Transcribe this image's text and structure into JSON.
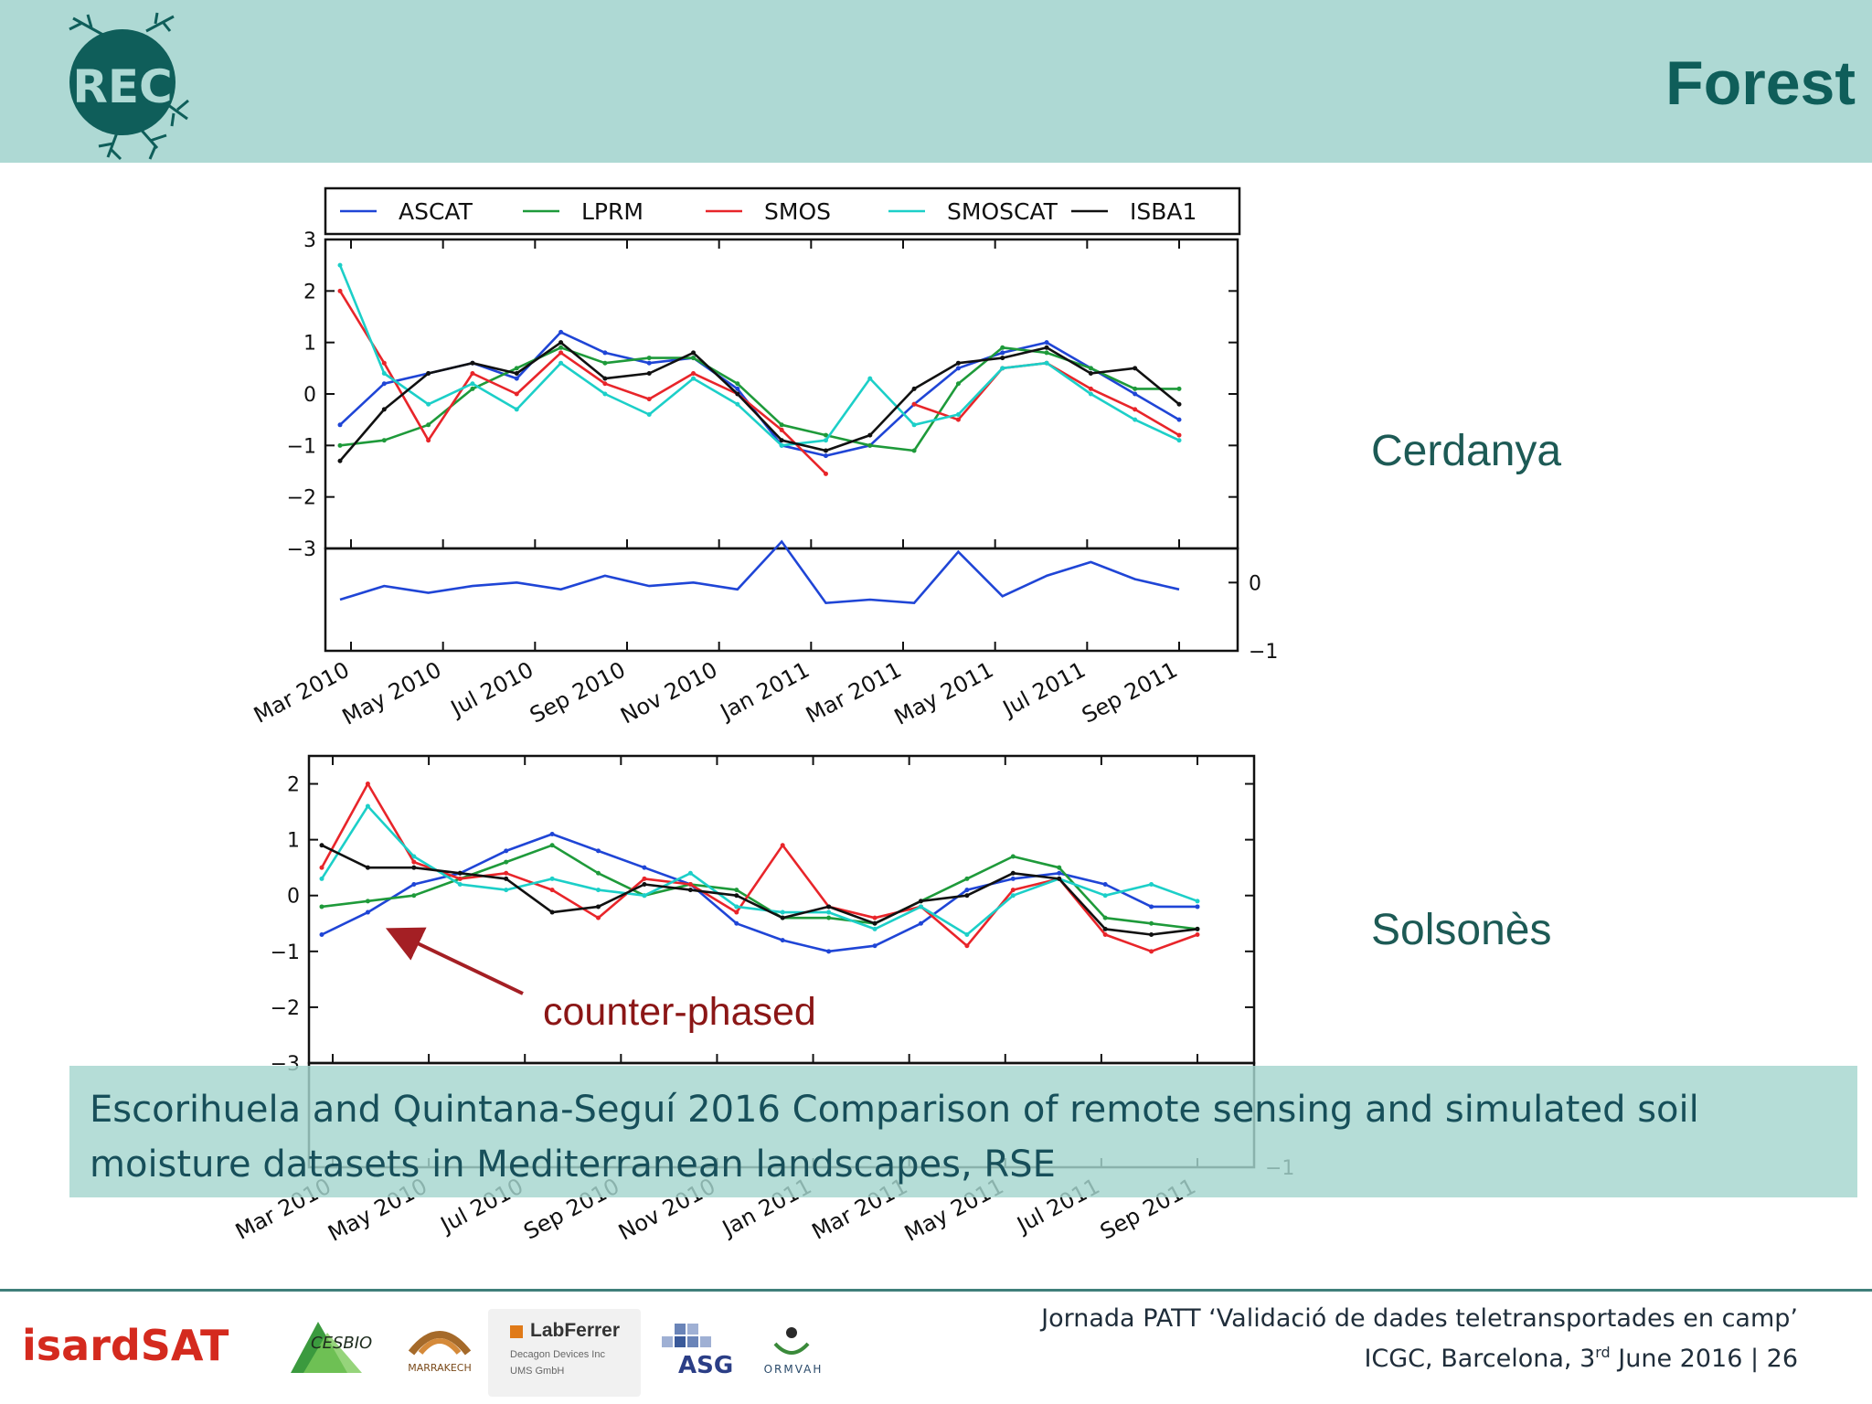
{
  "slide": {
    "title": "Forest",
    "logo_text": "REC",
    "site_labels": [
      "Cerdanya",
      "Solsonès"
    ],
    "annotation": "counter-phased",
    "citation_lines": [
      "Escorihuela and Quintana-Seguí 2016 Comparison of remote sensing and simulated soil",
      "moisture datasets in Mediterranean landscapes, RSE"
    ],
    "footer": {
      "line1": "Jornada PATT ‘Validació de dades teletransportades en camp’",
      "line2_prefix": "ICGC, Barcelona, 3",
      "line2_sup": "rd",
      "line2_suffix": " June 2016 | 26"
    },
    "sponsors": {
      "isardsat": "isardSAT",
      "cesbio": "CESBIO",
      "marrakech": "MARRAKECH",
      "labferrer": "LabFerrer",
      "labferrer_sub1": "Decagon Devices Inc",
      "labferrer_sub2": "UMS GmbH",
      "asg": "ASG",
      "ormvah": "ORMVAH"
    },
    "colors": {
      "header_bg": "#aed9d4",
      "title": "#0f5e5a",
      "ASCAT": "#1f45d6",
      "LPRM": "#1e9a3a",
      "SMOS": "#e8252a",
      "SMOSCAT": "#1ccfc8",
      "ISBA1": "#111111"
    }
  },
  "chart_data": [
    {
      "type": "line",
      "site": "Cerdanya",
      "legend": [
        "ASCAT",
        "LPRM",
        "SMOS",
        "SMOSCAT",
        "ISBA1"
      ],
      "x_ticks": [
        "Mar 2010",
        "May 2010",
        "Jul 2010",
        "Sep 2010",
        "Nov 2010",
        "Jan 2011",
        "Mar 2011",
        "May 2011",
        "Jul 2011",
        "Sep 2011"
      ],
      "x": [
        "2010-02",
        "2010-03",
        "2010-04",
        "2010-05",
        "2010-06",
        "2010-07",
        "2010-08",
        "2010-09",
        "2010-10",
        "2010-11",
        "2010-12",
        "2011-01",
        "2011-02",
        "2011-03",
        "2011-04",
        "2011-05",
        "2011-06",
        "2011-07",
        "2011-08",
        "2011-09"
      ],
      "ylim": [
        -3,
        3
      ],
      "y_ticks": [
        "3",
        "2",
        "1",
        "0",
        "−1",
        "−2",
        "−3"
      ],
      "series": [
        {
          "name": "ASCAT",
          "values": [
            -0.6,
            0.2,
            0.4,
            0.6,
            0.3,
            1.2,
            0.8,
            0.6,
            0.7,
            0.1,
            -1.0,
            -1.2,
            -1.0,
            -0.2,
            0.5,
            0.8,
            1.0,
            0.5,
            0.0,
            -0.5
          ]
        },
        {
          "name": "LPRM",
          "values": [
            -1.0,
            -0.9,
            -0.6,
            0.1,
            0.5,
            0.9,
            0.6,
            0.7,
            0.7,
            0.2,
            -0.6,
            -0.8,
            -1.0,
            -1.1,
            0.2,
            0.9,
            0.8,
            0.5,
            0.1,
            0.1
          ]
        },
        {
          "name": "SMOS",
          "values": [
            2.0,
            0.6,
            -0.9,
            0.4,
            0.0,
            0.8,
            0.2,
            -0.1,
            0.4,
            0.0,
            -0.7,
            -1.55,
            null,
            -0.2,
            -0.5,
            0.5,
            0.6,
            0.1,
            -0.3,
            -0.8
          ]
        },
        {
          "name": "SMOSCAT",
          "values": [
            2.5,
            0.4,
            -0.2,
            0.2,
            -0.3,
            0.6,
            0.0,
            -0.4,
            0.3,
            -0.2,
            -1.0,
            -0.9,
            0.3,
            -0.6,
            -0.4,
            0.5,
            0.6,
            0.0,
            -0.5,
            -0.9
          ]
        },
        {
          "name": "ISBA1",
          "values": [
            -1.3,
            -0.3,
            0.4,
            0.6,
            0.4,
            1.0,
            0.3,
            0.4,
            0.8,
            0.0,
            -0.9,
            -1.1,
            -0.8,
            0.1,
            0.6,
            0.7,
            0.9,
            0.4,
            0.5,
            -0.2
          ]
        }
      ],
      "residual": {
        "name": "ASCAT",
        "ylim": [
          -1,
          0.5
        ],
        "y_ticks": [
          "0",
          "−1"
        ],
        "values": [
          -0.25,
          -0.05,
          -0.15,
          -0.05,
          0.0,
          -0.1,
          0.1,
          -0.05,
          0.0,
          -0.1,
          0.6,
          -0.3,
          -0.25,
          -0.3,
          0.45,
          -0.2,
          0.1,
          0.3,
          0.05,
          -0.1
        ]
      }
    },
    {
      "type": "line",
      "site": "Solsonès",
      "x_ticks": [
        "Mar 2010",
        "May 2010",
        "Jul 2010",
        "Sep 2010",
        "Nov 2010",
        "Jan 2011",
        "Mar 2011",
        "May 2011",
        "Jul 2011",
        "Sep 2011"
      ],
      "x": [
        "2010-02",
        "2010-03",
        "2010-04",
        "2010-05",
        "2010-06",
        "2010-07",
        "2010-08",
        "2010-09",
        "2010-10",
        "2010-11",
        "2010-12",
        "2011-01",
        "2011-02",
        "2011-03",
        "2011-04",
        "2011-05",
        "2011-06",
        "2011-07",
        "2011-08",
        "2011-09"
      ],
      "ylim": [
        -3,
        2.5
      ],
      "y_ticks": [
        "2",
        "1",
        "0",
        "−1",
        "−2",
        "−3"
      ],
      "series": [
        {
          "name": "ASCAT",
          "values": [
            -0.7,
            -0.3,
            0.2,
            0.4,
            0.8,
            1.1,
            0.8,
            0.5,
            0.2,
            -0.5,
            -0.8,
            -1.0,
            -0.9,
            -0.5,
            0.1,
            0.3,
            0.4,
            0.2,
            -0.2,
            -0.2
          ]
        },
        {
          "name": "LPRM",
          "values": [
            -0.2,
            -0.1,
            0.0,
            0.3,
            0.6,
            0.9,
            0.4,
            0.0,
            0.2,
            0.1,
            -0.4,
            -0.4,
            -0.5,
            -0.1,
            0.3,
            0.7,
            0.5,
            -0.4,
            -0.5,
            -0.6
          ]
        },
        {
          "name": "SMOS",
          "values": [
            0.5,
            2.0,
            0.6,
            0.3,
            0.4,
            0.1,
            -0.4,
            0.3,
            0.2,
            -0.3,
            0.9,
            -0.2,
            -0.4,
            -0.2,
            -0.9,
            0.1,
            0.3,
            -0.7,
            -1.0,
            -0.7
          ]
        },
        {
          "name": "SMOSCAT",
          "values": [
            0.3,
            1.6,
            0.7,
            0.2,
            0.1,
            0.3,
            0.1,
            0.0,
            0.4,
            -0.2,
            -0.3,
            -0.3,
            -0.6,
            -0.2,
            -0.7,
            0.0,
            0.3,
            0.0,
            0.2,
            -0.1
          ]
        },
        {
          "name": "ISBA1",
          "values": [
            0.9,
            0.5,
            0.5,
            0.4,
            0.3,
            -0.3,
            -0.2,
            0.2,
            0.1,
            0.0,
            -0.4,
            -0.2,
            -0.5,
            -0.1,
            0.0,
            0.4,
            0.3,
            -0.6,
            -0.7,
            -0.6
          ]
        }
      ],
      "residual": {
        "name": "ASCAT",
        "ylim": [
          -1,
          0.5
        ],
        "y_ticks": [
          "−1"
        ]
      }
    }
  ]
}
